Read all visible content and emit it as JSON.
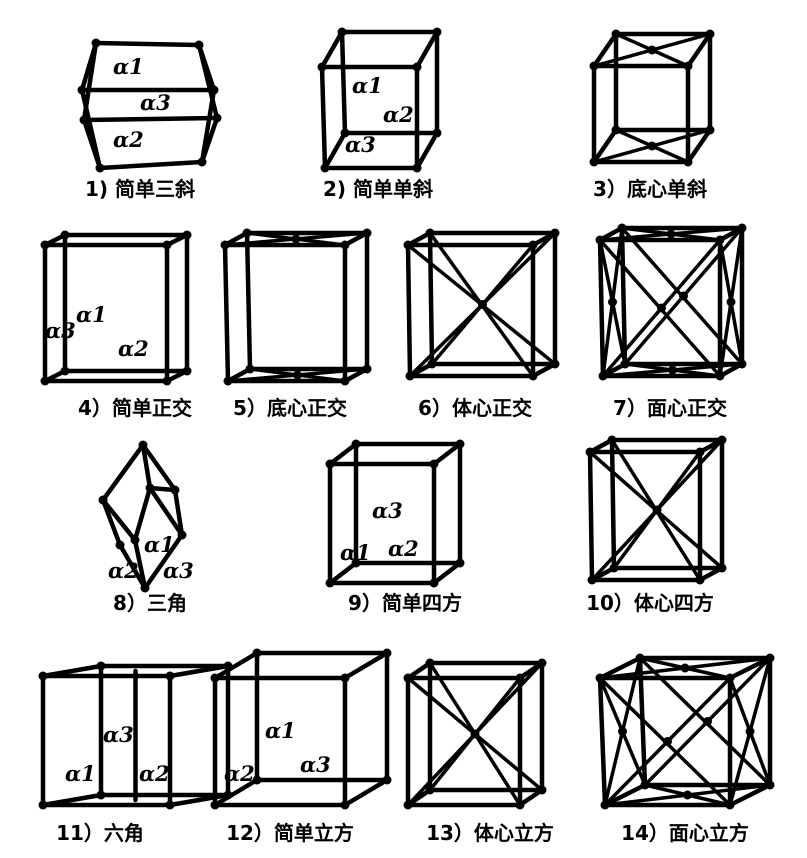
{
  "lattices": [
    {
      "caption": "1) 简单三斜",
      "labels": [
        "α1",
        "α3",
        "α2"
      ]
    },
    {
      "caption": "2) 简单单斜",
      "labels": [
        "α1",
        "α2",
        "α3"
      ]
    },
    {
      "caption": "3）底心单斜",
      "labels": []
    },
    {
      "caption": "4）简单正交",
      "labels": [
        "α1",
        "α3",
        "α2"
      ]
    },
    {
      "caption": "5）底心正交",
      "labels": []
    },
    {
      "caption": "6）体心正交",
      "labels": []
    },
    {
      "caption": "7）面心正交",
      "labels": []
    },
    {
      "caption": "8）三角",
      "labels": [
        "α1",
        "α2",
        "α3"
      ]
    },
    {
      "caption": "9）简单四方",
      "labels": [
        "α3",
        "α1",
        "α2"
      ]
    },
    {
      "caption": "10）体心四方",
      "labels": []
    },
    {
      "caption": "11）六角",
      "labels": [
        "α3",
        "α1",
        "α2"
      ]
    },
    {
      "caption": "12）简单立方",
      "labels": [
        "α1",
        "α2",
        "α3"
      ]
    },
    {
      "caption": "13）体心立方",
      "labels": []
    },
    {
      "caption": "14）面心立方",
      "labels": []
    }
  ]
}
